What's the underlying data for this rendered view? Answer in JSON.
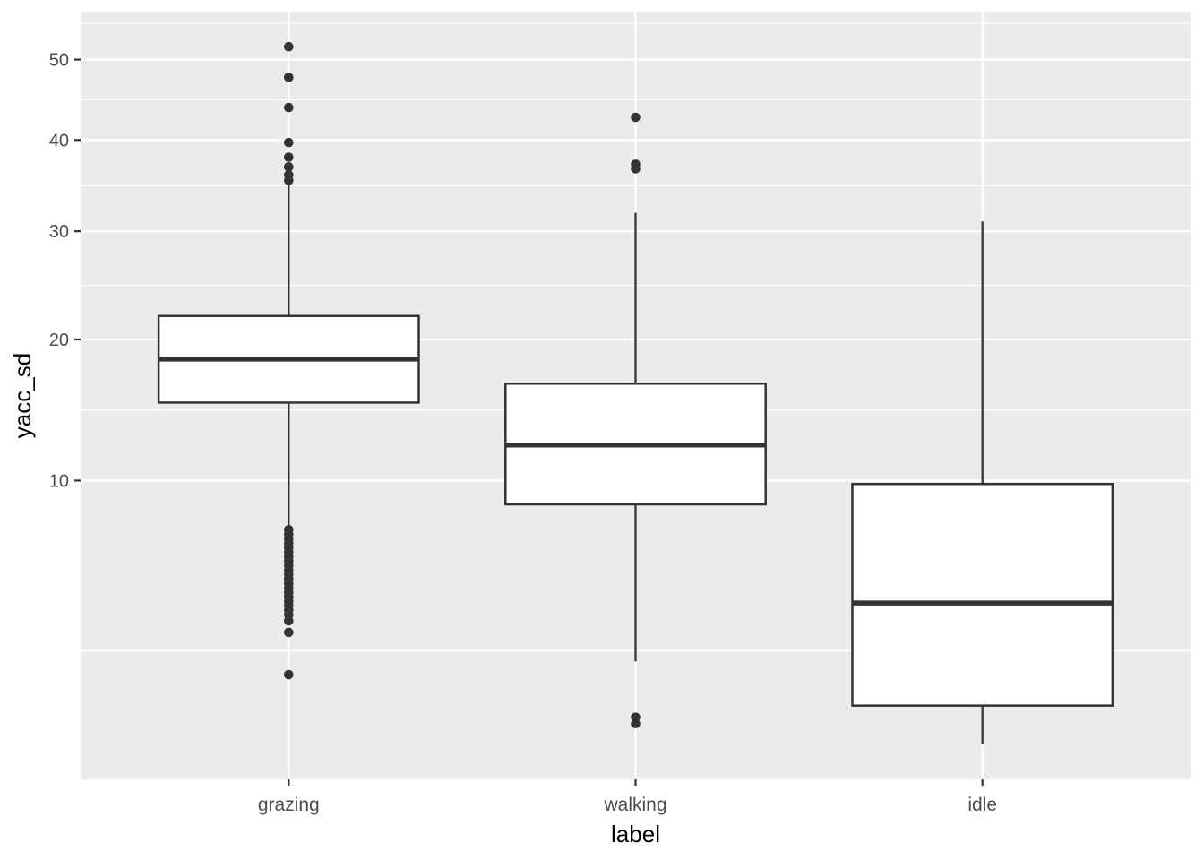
{
  "chart_data": {
    "type": "boxplot",
    "title": "",
    "xlabel": "label",
    "ylabel": "yacc_sd",
    "categories": [
      "grazing",
      "walking",
      "idle"
    ],
    "y_scale": {
      "type": "sqrt",
      "domain": [
        0.15,
        56.5
      ],
      "major_ticks": [
        10,
        20,
        30,
        40,
        50
      ],
      "tick_labels": [
        "10",
        "20",
        "30",
        "40",
        "50"
      ],
      "grid": "on",
      "minor_grid": "on"
    },
    "series": [
      {
        "name": "grazing",
        "whisker_low": 7.3,
        "q1": 15.1,
        "median": 18.4,
        "q3": 22.0,
        "whisker_high": 34.9,
        "outliers_high": [
          51.7,
          47.7,
          43.9,
          39.7,
          38.0,
          36.9,
          36.0,
          35.4
        ],
        "outliers_low": [
          7.32,
          7.1,
          6.88,
          6.66,
          6.45,
          6.24,
          6.03,
          5.83,
          5.63,
          5.44,
          5.25,
          5.06,
          4.87,
          4.69,
          4.51,
          4.34,
          4.17,
          4.0,
          3.84,
          3.67,
          3.46,
          3.07,
          1.85
        ]
      },
      {
        "name": "walking",
        "whisker_low": 2.2,
        "q1": 8.65,
        "median": 12.2,
        "q3": 16.5,
        "whisker_high": 31.9,
        "outliers_high": [
          42.7,
          37.2,
          36.7
        ],
        "outliers_low": [
          0.93,
          0.82
        ]
      },
      {
        "name": "idle",
        "whisker_low": 0.51,
        "q1": 1.15,
        "median": 4.1,
        "q3": 9.8,
        "whisker_high": 31.0,
        "outliers_high": [],
        "outliers_low": []
      }
    ],
    "style": {
      "panel_bg": "#EBEBEB",
      "grid_color": "#FFFFFF",
      "box_stroke": "#333333",
      "box_fill": "#FFFFFF",
      "axis_text_color": "#4D4D4D",
      "axis_title_color": "#000000",
      "tick_mark_color": "#333333"
    }
  }
}
